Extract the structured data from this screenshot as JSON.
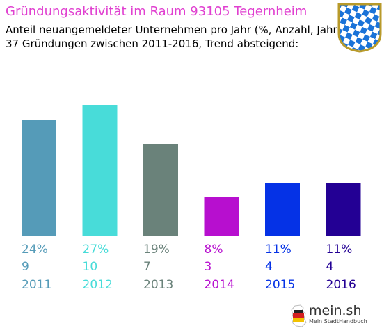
{
  "header": {
    "title": "Gründungsaktivität im Raum 93105 Tegernheim",
    "title_color": "#e040d0",
    "subtitle_line1": "Anteil neuangemeldeter Unternehmen pro Jahr (%, Anzahl, Jahr)",
    "subtitle_line2": "37 Gründungen zwischen 2011-2016, Trend absteigend:"
  },
  "crest": {
    "icon": "bavarian-lozenge-crest-icon"
  },
  "chart_data": {
    "type": "bar",
    "categories": [
      "2011",
      "2012",
      "2013",
      "2014",
      "2015",
      "2016"
    ],
    "values": [
      24,
      27,
      19,
      8,
      11,
      11
    ],
    "percent_labels": [
      "24%",
      "27%",
      "19%",
      "8%",
      "11%",
      "11%"
    ],
    "counts": [
      "9",
      "10",
      "7",
      "3",
      "4",
      "4"
    ],
    "colors": [
      "#559bb8",
      "#48dcd9",
      "#6a827a",
      "#b70fcf",
      "#0532e6",
      "#230094"
    ],
    "ylim": [
      0,
      30
    ]
  },
  "footer": {
    "logo_text": "mein.sh",
    "logo_subtext": "Mein StadtHandbuch",
    "logo_icon": "germany-map-icon"
  }
}
